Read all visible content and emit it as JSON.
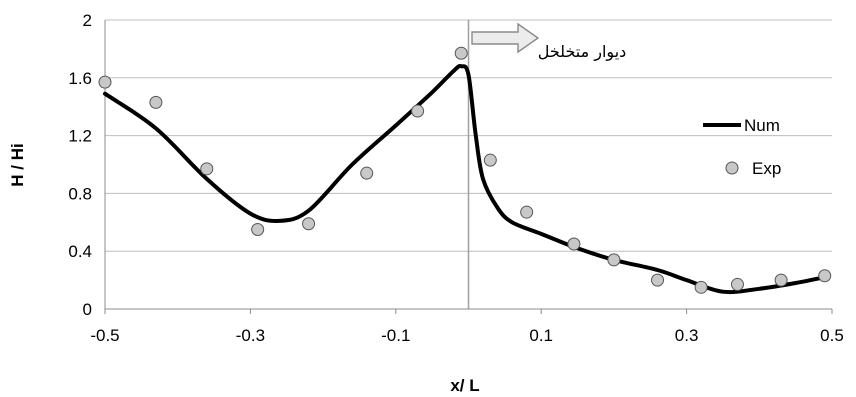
{
  "chart_data": {
    "type": "scatter",
    "title": "",
    "xlabel": "x/ L",
    "ylabel": "H / Hi",
    "xlim": [
      -0.5,
      0.5
    ],
    "ylim": [
      0,
      2
    ],
    "xticks": [
      "-0.5",
      "-0.3",
      "-0.1",
      "0.1",
      "0.3",
      "0.5"
    ],
    "yticks": [
      "0",
      "0.4",
      "0.8",
      "1.2",
      "1.6",
      "2"
    ],
    "grid": "horizontal",
    "legend_position": "right",
    "series": [
      {
        "name": "Num",
        "kind": "line",
        "color": "#000000",
        "x": [
          -0.5,
          -0.43,
          -0.36,
          -0.3,
          -0.26,
          -0.22,
          -0.16,
          -0.1,
          -0.05,
          -0.02,
          -0.01,
          0.0,
          0.01,
          0.02,
          0.04,
          0.06,
          0.1,
          0.15,
          0.2,
          0.26,
          0.3,
          0.35,
          0.4,
          0.45,
          0.49
        ],
        "y": [
          1.49,
          1.25,
          0.9,
          0.66,
          0.61,
          0.68,
          1.0,
          1.27,
          1.5,
          1.65,
          1.68,
          1.62,
          1.2,
          0.9,
          0.7,
          0.6,
          0.52,
          0.42,
          0.34,
          0.27,
          0.2,
          0.12,
          0.14,
          0.18,
          0.22
        ]
      },
      {
        "name": "Exp",
        "kind": "scatter",
        "color": "#c8c8c8",
        "x": [
          -0.5,
          -0.43,
          -0.36,
          -0.29,
          -0.22,
          -0.14,
          -0.07,
          -0.01,
          0.03,
          0.08,
          0.145,
          0.2,
          0.26,
          0.32,
          0.37,
          0.43,
          0.49
        ],
        "y": [
          1.57,
          1.43,
          0.97,
          0.55,
          0.59,
          0.94,
          1.37,
          1.77,
          1.03,
          0.67,
          0.45,
          0.34,
          0.2,
          0.15,
          0.17,
          0.2,
          0.23
        ]
      }
    ],
    "wall_x": 0.0,
    "annotation": "دیوار متخلخل"
  }
}
